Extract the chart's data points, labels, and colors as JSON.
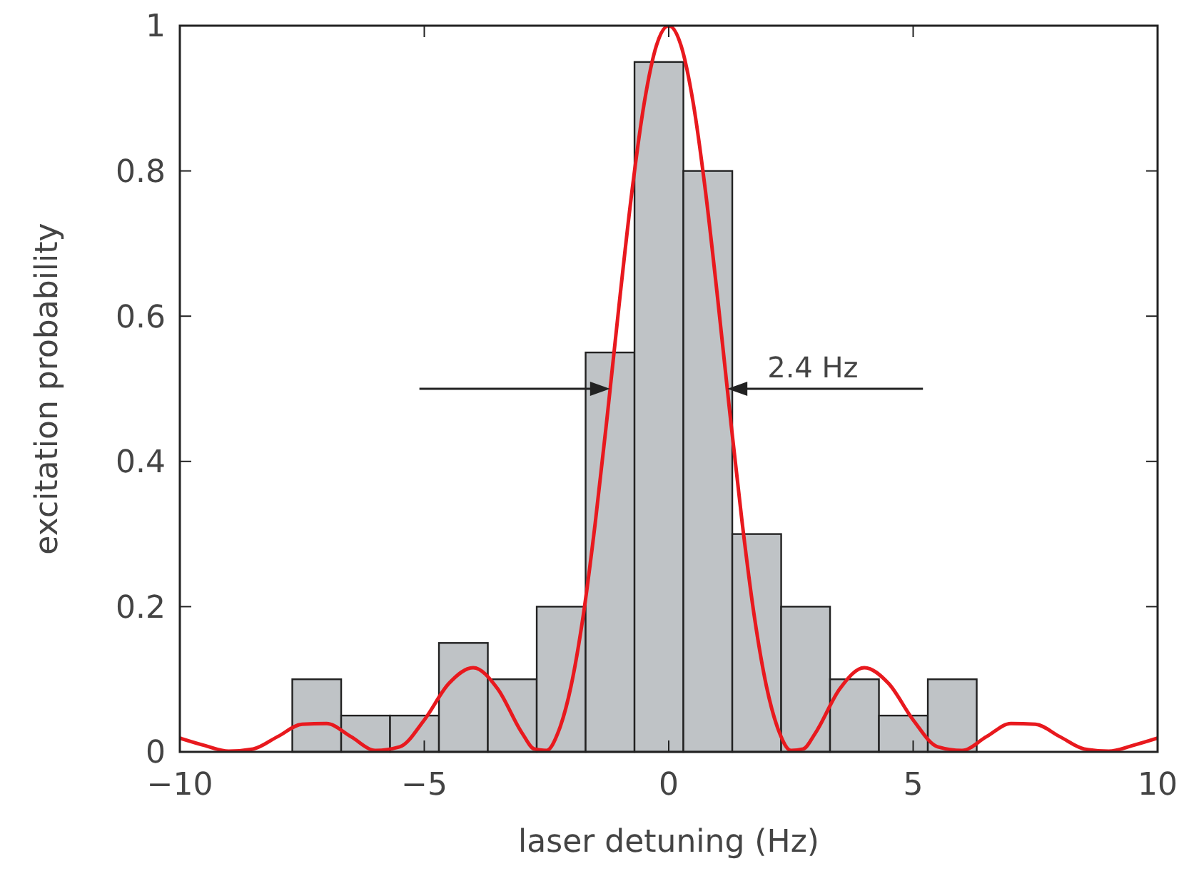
{
  "chart_data": {
    "type": "histogram",
    "xlabel": "laser detuning (Hz)",
    "ylabel": "excitation probability",
    "bins": [
      -7.7,
      -6.7,
      -5.7,
      -4.7,
      -3.7,
      -2.7,
      -1.7,
      -0.7,
      0.3,
      1.3,
      2.3,
      3.3,
      4.3,
      5.3,
      6.3
    ],
    "values": [
      0.1,
      0.05,
      0.05,
      0.15,
      0.1,
      0.2,
      0.55,
      0.95,
      0.8,
      0.3,
      0.2,
      0.1,
      0.05,
      0.1
    ],
    "color": "#bfc3c6",
    "series": [
      {
        "type": "line",
        "color": "#e8191e",
        "x": [
          -10,
          -9.5,
          -9,
          -8.5,
          -8,
          -7.5,
          -7,
          -6.5,
          -6,
          -5.5,
          -5,
          -4.5,
          -4,
          -3.5,
          -3,
          -2.75,
          -2.5,
          -2.25,
          -2,
          -1.75,
          -1.5,
          -1.25,
          -1,
          -0.75,
          -0.5,
          -0.25,
          0,
          0.25,
          0.5,
          0.75,
          1,
          1.25,
          1.5,
          1.75,
          2,
          2.25,
          2.5,
          2.75,
          3,
          3.5,
          4,
          4.5,
          5,
          5.5,
          6,
          6.5,
          7,
          7.5,
          8,
          8.5,
          9,
          9.5,
          10
        ],
        "values": [
          0.019,
          0.009,
          0.001,
          0.004,
          0.021,
          0.038,
          0.039,
          0.021,
          0.002,
          0.007,
          0.044,
          0.094,
          0.116,
          0.087,
          0.026,
          0.004,
          0.002,
          0.029,
          0.09,
          0.187,
          0.317,
          0.467,
          0.625,
          0.773,
          0.894,
          0.973,
          1,
          0.973,
          0.894,
          0.773,
          0.625,
          0.467,
          0.317,
          0.187,
          0.09,
          0.029,
          0.002,
          0.004,
          0.026,
          0.087,
          0.116,
          0.094,
          0.044,
          0.007,
          0.002,
          0.021,
          0.039,
          0.038,
          0.021,
          0.004,
          0.001,
          0.009,
          0.019
        ]
      }
    ],
    "annotations": [
      {
        "text": "2.4 Hz",
        "x": 1.2,
        "y": 0.5
      }
    ],
    "xlim": [
      -10,
      10
    ],
    "xticks": [
      {
        "value": -10,
        "label": "−10"
      },
      {
        "value": -5,
        "label": "−5"
      },
      0,
      5,
      10
    ],
    "ylim": [
      0,
      1
    ],
    "yticks": [
      0,
      0.2,
      0.4,
      0.6,
      0.8,
      1
    ]
  }
}
